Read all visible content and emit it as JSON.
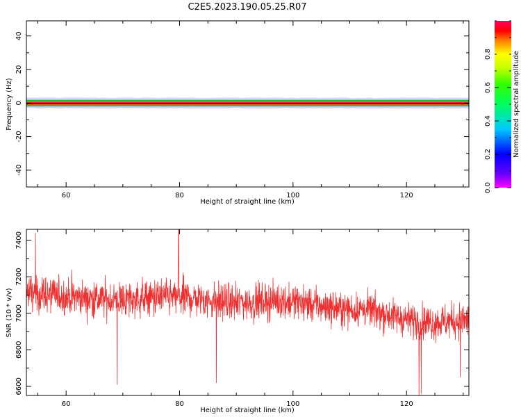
{
  "title": "C2E5.2023.190.05.25.R07",
  "chart_data": [
    {
      "type": "heatmap",
      "xlabel": "Height of straight line (km)",
      "ylabel": "Frequency (Hz)",
      "xlim": [
        53,
        131
      ],
      "ylim": [
        -50,
        49
      ],
      "xticks": [
        60,
        80,
        100,
        120
      ],
      "yticks": [
        -40,
        -20,
        0,
        20,
        40
      ],
      "xtick_labels": [
        "60",
        "80",
        "100",
        "120"
      ],
      "ytick_labels": [
        "-40",
        "-20",
        "0",
        "20",
        "40"
      ],
      "signal_band_hz": [
        -2,
        2
      ],
      "peak_frequency_hz": 0,
      "colorbar": {
        "label": "Normalized spectral amplitude",
        "range": [
          0,
          1
        ],
        "ticks": [
          0.0,
          0.2,
          0.4,
          0.6,
          0.8
        ],
        "tick_labels": [
          "0.0",
          "0.2",
          "0.4",
          "0.6",
          "0.8"
        ],
        "colormap": "rainbow"
      }
    },
    {
      "type": "line",
      "xlabel": "Height of straight line (km)",
      "ylabel": "SNR (10 * v/v)",
      "xlim": [
        53,
        131
      ],
      "ylim": [
        6550,
        7460
      ],
      "xticks": [
        60,
        80,
        100,
        120
      ],
      "yticks": [
        6600,
        6800,
        7000,
        7200,
        7400
      ],
      "xtick_labels": [
        "60",
        "80",
        "100",
        "120"
      ],
      "ytick_labels": [
        "6600",
        "6800",
        "7000",
        "7200",
        "7400"
      ],
      "line_color": "#f03030",
      "series": [
        {
          "x": [
            53,
            57,
            61,
            65,
            69,
            73,
            77,
            81,
            85,
            89,
            93,
            97,
            101,
            105,
            109,
            113,
            117,
            121,
            125,
            129,
            131
          ],
          "mean": [
            7110,
            7100,
            7090,
            7080,
            7070,
            7080,
            7090,
            7085,
            7070,
            7060,
            7060,
            7070,
            7060,
            7040,
            7020,
            7020,
            6990,
            6960,
            6950,
            6960,
            6960
          ],
          "spread": [
            100,
            100,
            100,
            100,
            100,
            100,
            100,
            100,
            100,
            95,
            95,
            95,
            95,
            90,
            90,
            90,
            90,
            90,
            95,
            95,
            95
          ]
        }
      ],
      "spikes": [
        {
          "x": 54.6,
          "y": 7440
        },
        {
          "x": 79.8,
          "y": 7460
        },
        {
          "x": 69.0,
          "y": 6610
        },
        {
          "x": 86.5,
          "y": 6620
        },
        {
          "x": 122.2,
          "y": 6550
        },
        {
          "x": 122.6,
          "y": 6560
        },
        {
          "x": 129.5,
          "y": 6650
        }
      ]
    }
  ]
}
